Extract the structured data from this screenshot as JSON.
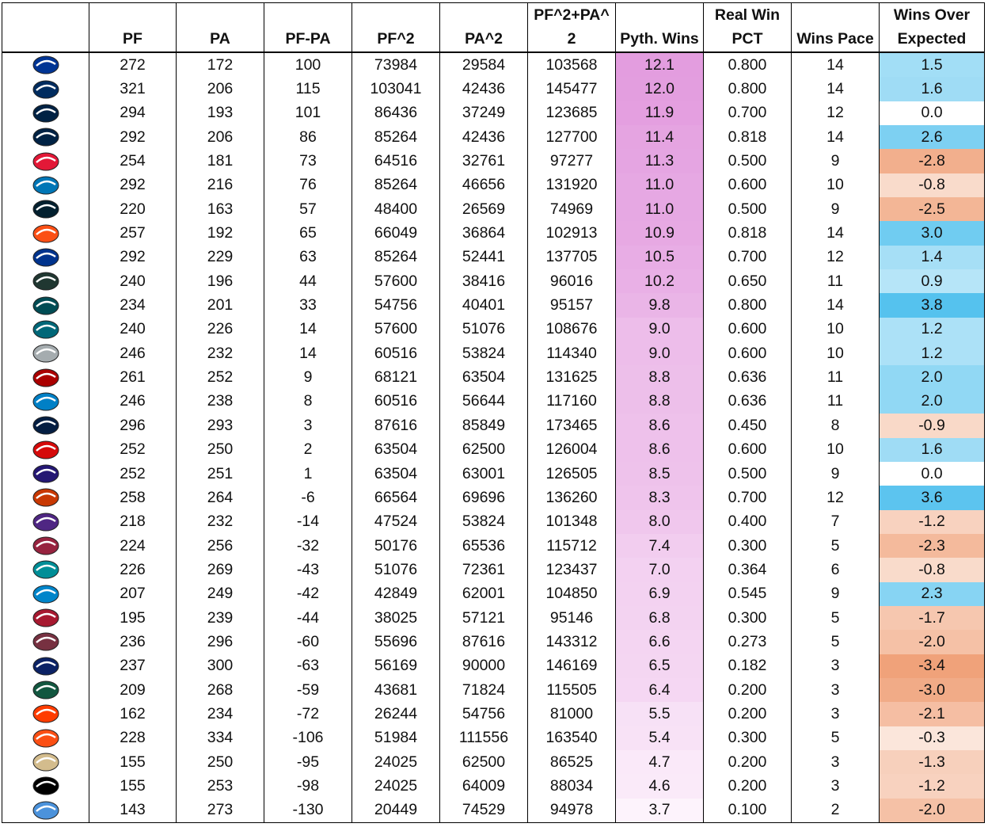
{
  "table": {
    "headers_top": [
      "",
      "",
      "",
      "",
      "",
      "",
      "PF^2+PA^",
      "",
      "Real Win",
      "",
      "Wins Over"
    ],
    "headers_bottom": [
      "",
      "PF",
      "PA",
      "PF-PA",
      "PF^2",
      "PA^2",
      "2",
      "Pyth. Wins",
      "PCT",
      "Wins Pace",
      "Expected"
    ],
    "colors": {
      "pyth_high": "#e39ddf",
      "pyth_low": "#fdf3fc",
      "woe_positive_max": "#55c2ee",
      "woe_negative_max": "#f0a27a",
      "woe_zero": "#ffffff"
    },
    "rows": [
      {
        "team_icon": "rams-logo",
        "color": "#003594",
        "pf": "272",
        "pa": "172",
        "diff": "100",
        "pf2": "73984",
        "pa2": "29584",
        "sum": "103568",
        "pyth": "12.1",
        "pct": "0.800",
        "pace": "14",
        "woe": "1.5"
      },
      {
        "team_icon": "colts-logo",
        "color": "#002c5f",
        "pf": "321",
        "pa": "206",
        "diff": "115",
        "pf2": "103041",
        "pa2": "42436",
        "sum": "145477",
        "pyth": "12.0",
        "pct": "0.800",
        "pace": "14",
        "woe": "1.6"
      },
      {
        "team_icon": "seahawks-logo",
        "color": "#002244",
        "pf": "294",
        "pa": "193",
        "diff": "101",
        "pf2": "86436",
        "pa2": "37249",
        "sum": "123685",
        "pyth": "11.9",
        "pct": "0.700",
        "pace": "12",
        "woe": "0.0"
      },
      {
        "team_icon": "patriots-logo",
        "color": "#002244",
        "pf": "292",
        "pa": "206",
        "diff": "86",
        "pf2": "85264",
        "pa2": "42436",
        "sum": "127700",
        "pyth": "11.4",
        "pct": "0.818",
        "pace": "14",
        "woe": "2.6"
      },
      {
        "team_icon": "chiefs-logo",
        "color": "#e31837",
        "pf": "254",
        "pa": "181",
        "diff": "73",
        "pf2": "64516",
        "pa2": "32761",
        "sum": "97277",
        "pyth": "11.3",
        "pct": "0.500",
        "pace": "9",
        "woe": "-2.8"
      },
      {
        "team_icon": "lions-logo",
        "color": "#0076b6",
        "pf": "292",
        "pa": "216",
        "diff": "76",
        "pf2": "85264",
        "pa2": "46656",
        "sum": "131920",
        "pyth": "11.0",
        "pct": "0.600",
        "pace": "10",
        "woe": "-0.8"
      },
      {
        "team_icon": "texans-logo",
        "color": "#03202f",
        "pf": "220",
        "pa": "163",
        "diff": "57",
        "pf2": "48400",
        "pa2": "26569",
        "sum": "74969",
        "pyth": "11.0",
        "pct": "0.500",
        "pace": "9",
        "woe": "-2.5"
      },
      {
        "team_icon": "broncos-logo",
        "color": "#fb4f14",
        "pf": "257",
        "pa": "192",
        "diff": "65",
        "pf2": "66049",
        "pa2": "36864",
        "sum": "102913",
        "pyth": "10.9",
        "pct": "0.818",
        "pace": "14",
        "woe": "3.0"
      },
      {
        "team_icon": "bills-logo",
        "color": "#00338d",
        "pf": "292",
        "pa": "229",
        "diff": "63",
        "pf2": "85264",
        "pa2": "52441",
        "sum": "137705",
        "pyth": "10.5",
        "pct": "0.700",
        "pace": "12",
        "woe": "1.4"
      },
      {
        "team_icon": "packers-logo",
        "color": "#203731",
        "pf": "240",
        "pa": "196",
        "diff": "44",
        "pf2": "57600",
        "pa2": "38416",
        "sum": "96016",
        "pyth": "10.2",
        "pct": "0.650",
        "pace": "11",
        "woe": "0.9"
      },
      {
        "team_icon": "eagles-logo",
        "color": "#004c54",
        "pf": "234",
        "pa": "201",
        "diff": "33",
        "pf2": "54756",
        "pa2": "40401",
        "sum": "95157",
        "pyth": "9.8",
        "pct": "0.800",
        "pace": "14",
        "woe": "3.8"
      },
      {
        "team_icon": "jaguars-logo",
        "color": "#006778",
        "pf": "240",
        "pa": "226",
        "diff": "14",
        "pf2": "57600",
        "pa2": "51076",
        "sum": "108676",
        "pyth": "9.0",
        "pct": "0.600",
        "pace": "10",
        "woe": "1.2"
      },
      {
        "team_icon": "steelers-logo",
        "color": "#a5acaf",
        "pf": "246",
        "pa": "232",
        "diff": "14",
        "pf2": "60516",
        "pa2": "53824",
        "sum": "114340",
        "pyth": "9.0",
        "pct": "0.600",
        "pace": "10",
        "woe": "1.2"
      },
      {
        "team_icon": "49ers-logo",
        "color": "#aa0000",
        "pf": "261",
        "pa": "252",
        "diff": "9",
        "pf2": "68121",
        "pa2": "63504",
        "sum": "131625",
        "pyth": "8.8",
        "pct": "0.636",
        "pace": "11",
        "woe": "2.0"
      },
      {
        "team_icon": "chargers-logo",
        "color": "#0080c6",
        "pf": "246",
        "pa": "238",
        "diff": "8",
        "pf2": "60516",
        "pa2": "56644",
        "sum": "117160",
        "pyth": "8.8",
        "pct": "0.636",
        "pace": "11",
        "woe": "2.0"
      },
      {
        "team_icon": "cowboys-logo",
        "color": "#041e42",
        "pf": "296",
        "pa": "293",
        "diff": "3",
        "pf2": "87616",
        "pa2": "85849",
        "sum": "173465",
        "pyth": "8.6",
        "pct": "0.450",
        "pace": "8",
        "woe": "-0.9"
      },
      {
        "team_icon": "buccaneers-logo",
        "color": "#d50a0a",
        "pf": "252",
        "pa": "250",
        "diff": "2",
        "pf2": "63504",
        "pa2": "62500",
        "sum": "126004",
        "pyth": "8.6",
        "pct": "0.600",
        "pace": "10",
        "woe": "1.6"
      },
      {
        "team_icon": "ravens-logo",
        "color": "#241773",
        "pf": "252",
        "pa": "251",
        "diff": "1",
        "pf2": "63504",
        "pa2": "63001",
        "sum": "126505",
        "pyth": "8.5",
        "pct": "0.500",
        "pace": "9",
        "woe": "0.0"
      },
      {
        "team_icon": "bears-logo",
        "color": "#c83803",
        "pf": "258",
        "pa": "264",
        "diff": "-6",
        "pf2": "66564",
        "pa2": "69696",
        "sum": "136260",
        "pyth": "8.3",
        "pct": "0.700",
        "pace": "12",
        "woe": "3.6"
      },
      {
        "team_icon": "vikings-logo",
        "color": "#4f2683",
        "pf": "218",
        "pa": "232",
        "diff": "-14",
        "pf2": "47524",
        "pa2": "53824",
        "sum": "101348",
        "pyth": "8.0",
        "pct": "0.400",
        "pace": "7",
        "woe": "-1.2"
      },
      {
        "team_icon": "cardinals-logo",
        "color": "#97233f",
        "pf": "224",
        "pa": "256",
        "diff": "-32",
        "pf2": "50176",
        "pa2": "65536",
        "sum": "115712",
        "pyth": "7.4",
        "pct": "0.300",
        "pace": "5",
        "woe": "-2.3"
      },
      {
        "team_icon": "dolphins-logo",
        "color": "#008e97",
        "pf": "226",
        "pa": "269",
        "diff": "-43",
        "pf2": "51076",
        "pa2": "72361",
        "sum": "123437",
        "pyth": "7.0",
        "pct": "0.364",
        "pace": "6",
        "woe": "-0.8"
      },
      {
        "team_icon": "panthers-logo",
        "color": "#0085ca",
        "pf": "207",
        "pa": "249",
        "diff": "-42",
        "pf2": "42849",
        "pa2": "62001",
        "sum": "104850",
        "pyth": "6.9",
        "pct": "0.545",
        "pace": "9",
        "woe": "2.3"
      },
      {
        "team_icon": "falcons-logo",
        "color": "#a71930",
        "pf": "195",
        "pa": "239",
        "diff": "-44",
        "pf2": "38025",
        "pa2": "57121",
        "sum": "95146",
        "pyth": "6.8",
        "pct": "0.300",
        "pace": "5",
        "woe": "-1.7"
      },
      {
        "team_icon": "commanders-logo",
        "color": "#773141",
        "pf": "236",
        "pa": "296",
        "diff": "-60",
        "pf2": "55696",
        "pa2": "87616",
        "sum": "143312",
        "pyth": "6.6",
        "pct": "0.273",
        "pace": "5",
        "woe": "-2.0"
      },
      {
        "team_icon": "giants-logo",
        "color": "#0b2265",
        "pf": "237",
        "pa": "300",
        "diff": "-63",
        "pf2": "56169",
        "pa2": "90000",
        "sum": "146169",
        "pyth": "6.5",
        "pct": "0.182",
        "pace": "3",
        "woe": "-3.4"
      },
      {
        "team_icon": "jets-logo",
        "color": "#125740",
        "pf": "209",
        "pa": "268",
        "diff": "-59",
        "pf2": "43681",
        "pa2": "71824",
        "sum": "115505",
        "pyth": "6.4",
        "pct": "0.200",
        "pace": "3",
        "woe": "-3.0"
      },
      {
        "team_icon": "browns-logo",
        "color": "#ff3c00",
        "pf": "162",
        "pa": "234",
        "diff": "-72",
        "pf2": "26244",
        "pa2": "54756",
        "sum": "81000",
        "pyth": "5.5",
        "pct": "0.200",
        "pace": "3",
        "woe": "-2.1"
      },
      {
        "team_icon": "bengals-logo",
        "color": "#fb4f14",
        "pf": "228",
        "pa": "334",
        "diff": "-106",
        "pf2": "51984",
        "pa2": "111556",
        "sum": "163540",
        "pyth": "5.4",
        "pct": "0.300",
        "pace": "5",
        "woe": "-0.3"
      },
      {
        "team_icon": "saints-logo",
        "color": "#d3bc8d",
        "pf": "155",
        "pa": "250",
        "diff": "-95",
        "pf2": "24025",
        "pa2": "62500",
        "sum": "86525",
        "pyth": "4.7",
        "pct": "0.200",
        "pace": "3",
        "woe": "-1.3"
      },
      {
        "team_icon": "raiders-logo",
        "color": "#000000",
        "pf": "155",
        "pa": "253",
        "diff": "-98",
        "pf2": "24025",
        "pa2": "64009",
        "sum": "88034",
        "pyth": "4.6",
        "pct": "0.200",
        "pace": "3",
        "woe": "-1.2"
      },
      {
        "team_icon": "titans-logo",
        "color": "#4b92db",
        "pf": "143",
        "pa": "273",
        "diff": "-130",
        "pf2": "20449",
        "pa2": "74529",
        "sum": "94978",
        "pyth": "3.7",
        "pct": "0.100",
        "pace": "2",
        "woe": "-2.0"
      }
    ]
  }
}
